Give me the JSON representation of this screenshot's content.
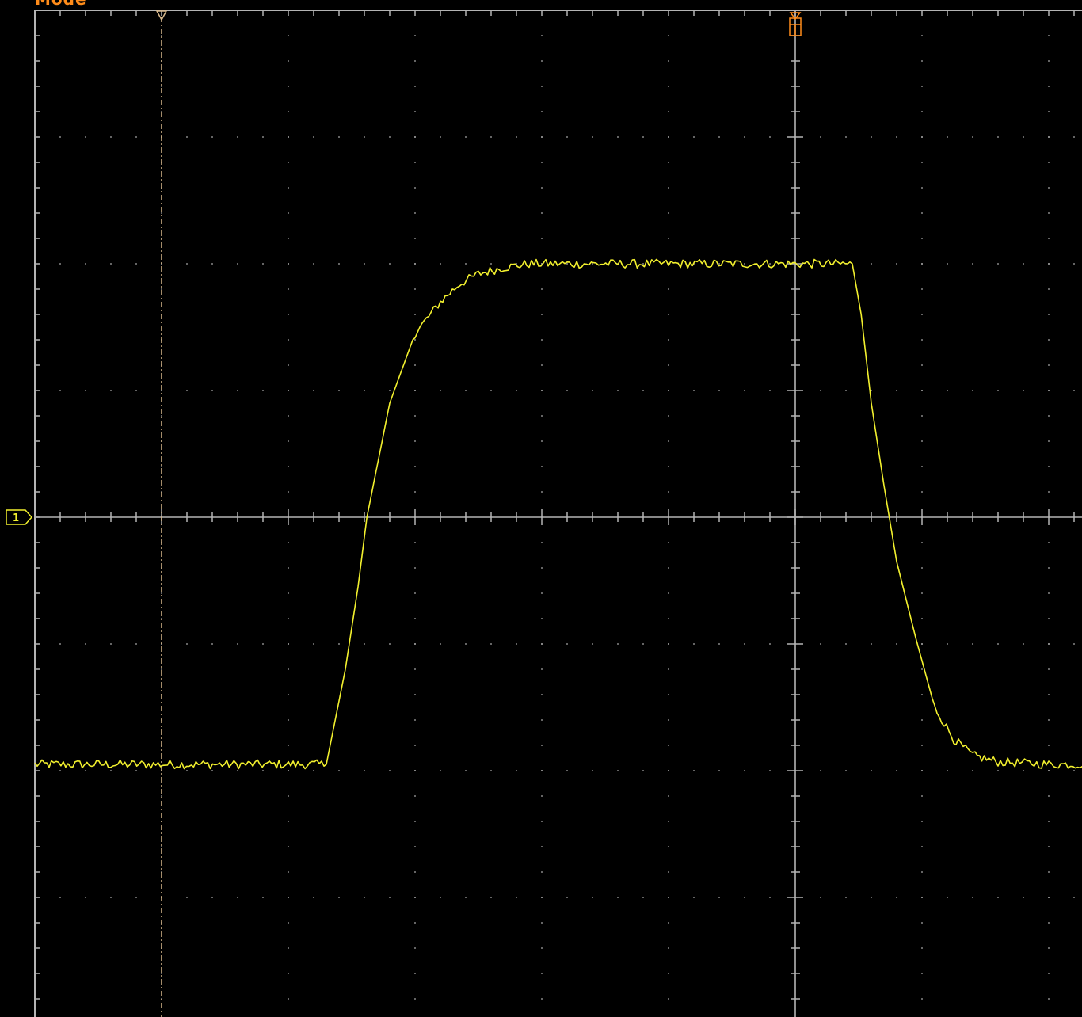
{
  "screen": {
    "mode_label": "Mode",
    "grid_color": "#b4b4b4",
    "background_color": "#000000",
    "trigger_color": "#ff8c1a",
    "cursor_color": "#d9b98c"
  },
  "channel": {
    "marker_label": "1",
    "color": "#f2f02e"
  },
  "chart_data": {
    "type": "line",
    "title": "",
    "xlabel": "",
    "ylabel": "",
    "divisions": {
      "horizontal": 10,
      "vertical": 8
    },
    "xlim": [
      -6,
      2.5
    ],
    "ylim": [
      -2.5,
      4
    ],
    "x_unit": "divisions",
    "y_unit": "divisions",
    "trigger_x": 0,
    "cursor_x": -5,
    "grid": true,
    "series": [
      {
        "x": [
          -6.0,
          -3.7,
          -3.55,
          -3.45,
          -3.38,
          -3.2,
          -3.0,
          -2.8,
          -2.65,
          -2.5,
          -2.3,
          -2.1,
          -1.8,
          -1.4,
          -1.0,
          0.0,
          0.45,
          0.52,
          0.6,
          0.7,
          0.8,
          0.95,
          1.1,
          1.25,
          1.4,
          1.6,
          2.0,
          2.4,
          2.5
        ],
        "y": [
          -1.95,
          -1.95,
          -1.2,
          -0.55,
          0.0,
          0.9,
          1.45,
          1.7,
          1.84,
          1.92,
          1.97,
          2.0,
          2.0,
          2.0,
          2.0,
          2.0,
          2.0,
          1.6,
          0.9,
          0.25,
          -0.35,
          -0.95,
          -1.5,
          -1.75,
          -1.88,
          -1.93,
          -1.95,
          -1.95,
          -1.95
        ]
      }
    ]
  }
}
